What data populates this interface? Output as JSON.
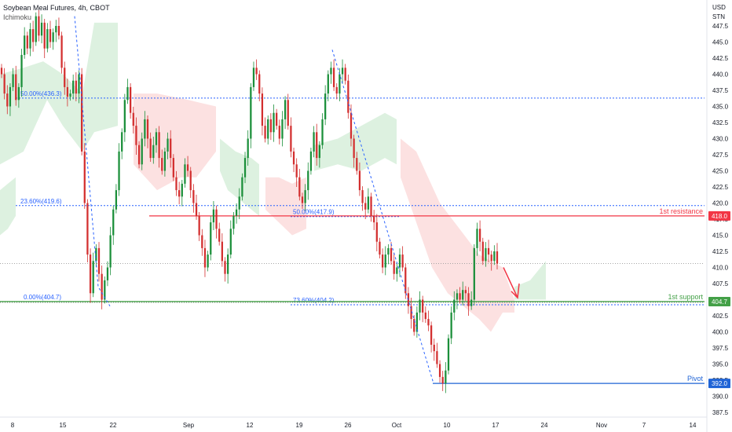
{
  "header": {
    "title": "Soybean Meal Futures, 4h, CBOT",
    "indicator": "Ichimoku",
    "currency": "USD",
    "unit": "STN"
  },
  "colors": {
    "up": "#26a69a",
    "up_dark": "#1b8f3a",
    "down": "#ef5350",
    "down_dark": "#d32f2f",
    "fib": "#2962ff",
    "resistance": "#f23645",
    "support": "#43a047",
    "pivot": "#1e63d6",
    "cloud_green": "#d7eedb",
    "cloud_red": "#fbdcdc"
  },
  "chart_data": {
    "type": "candlestick",
    "y_axis": {
      "min": 387.5,
      "max": 450.0,
      "ticks": [
        "447.5",
        "445.0",
        "442.5",
        "440.0",
        "437.5",
        "435.0",
        "432.5",
        "430.0",
        "427.5",
        "425.0",
        "422.5",
        "420.0",
        "417.5",
        "415.0",
        "412.5",
        "410.0",
        "407.5",
        "405.0",
        "402.5",
        "400.0",
        "397.5",
        "395.0",
        "392.5",
        "390.0",
        "387.5"
      ]
    },
    "x_axis": {
      "labels": [
        "8",
        "15",
        "22",
        "Sep",
        "12",
        "19",
        "26",
        "Oct",
        "10",
        "17",
        "24",
        "Nov",
        "7",
        "14"
      ]
    },
    "levels": [
      {
        "name": "1st resistance",
        "value": 418.0,
        "badge": "418.0"
      },
      {
        "name": "1st support",
        "value": 404.7,
        "badge": "404.7"
      },
      {
        "name": "Pivot",
        "value": 392.0,
        "badge": "392.0"
      }
    ],
    "fib_levels": [
      {
        "label": "50.00%(436.3)",
        "value": 436.3
      },
      {
        "label": "23.60%(419.6)",
        "value": 419.6
      },
      {
        "label": "50.00%(417.9)",
        "value": 417.9
      },
      {
        "label": "0.00%(404.7)",
        "value": 404.7
      },
      {
        "label": "73.60%(404.2)",
        "value": 404.2
      }
    ],
    "current_price": 410.6,
    "closes": [
      440.0,
      437.0,
      435.0,
      438.0,
      440.0,
      436.0,
      438.0,
      443.0,
      446.0,
      444.0,
      447.0,
      445.0,
      449.0,
      446.0,
      448.0,
      444.0,
      447.0,
      445.0,
      446.5,
      447.5,
      446.0,
      441.0,
      438.0,
      436.5,
      437.0,
      439.0,
      437.0,
      440.0,
      428.0,
      420.0,
      412.0,
      406.0,
      411.0,
      413.0,
      409.0,
      405.0,
      408.0,
      410.0,
      415.0,
      419.0,
      422.0,
      428.0,
      431.0,
      436.0,
      438.0,
      434.0,
      432.0,
      429.0,
      426.0,
      430.0,
      433.0,
      430.0,
      427.0,
      429.0,
      431.0,
      427.0,
      425.0,
      428.0,
      430.0,
      427.0,
      424.0,
      422.0,
      421.0,
      423.0,
      426.0,
      425.0,
      422.0,
      420.0,
      418.0,
      415.0,
      413.0,
      410.0,
      412.0,
      417.0,
      419.0,
      416.0,
      414.0,
      411.0,
      409.0,
      412.0,
      416.0,
      418.0,
      419.0,
      421.0,
      424.0,
      427.0,
      430.0,
      438.0,
      441.0,
      440.0,
      437.0,
      432.0,
      430.0,
      433.0,
      431.0,
      434.0,
      432.0,
      430.0,
      433.0,
      436.0,
      432.0,
      428.0,
      426.0,
      424.0,
      421.0,
      420.0,
      422.0,
      425.0,
      428.0,
      431.0,
      427.0,
      429.0,
      433.0,
      437.0,
      440.0,
      441.0,
      438.0,
      437.0,
      440.0,
      441.0,
      439.0,
      434.0,
      430.0,
      427.0,
      425.0,
      422.0,
      420.0,
      419.0,
      421.0,
      418.0,
      417.0,
      414.0,
      412.0,
      410.0,
      412.0,
      413.0,
      411.0,
      409.0,
      410.0,
      412.0,
      410.0,
      406.0,
      404.0,
      402.0,
      400.0,
      403.0,
      405.0,
      403.0,
      402.0,
      401.0,
      398.0,
      397.0,
      395.0,
      393.0,
      392.0,
      394.0,
      399.0,
      403.0,
      405.0,
      406.0,
      405.0,
      406.5,
      406.0,
      404.0,
      405.0,
      413.0,
      416.0,
      414.0,
      411.0,
      413.0,
      412.0,
      411.0,
      412.5,
      410.6
    ]
  }
}
